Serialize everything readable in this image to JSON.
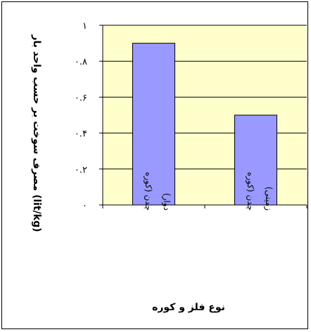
{
  "chart_data": {
    "type": "bar",
    "title": "",
    "xlabel": "نوع فلز و کوره",
    "ylabel": "مصرف سوخت بر حسب واحد بار (lit/kg)",
    "categories": [
      [
        "چدن (کوره",
        "دوار)"
      ],
      [
        "چدن (کوره",
        "زمینی)"
      ]
    ],
    "values": [
      0.9,
      0.5
    ],
    "ylim": [
      0,
      1
    ],
    "yticks": [
      0,
      0.2,
      0.4,
      0.6,
      0.8,
      1
    ],
    "ytick_labels": [
      "۰",
      "۰.۲",
      "۰.۴",
      "۰.۶",
      "۰.۸",
      "۱"
    ],
    "grid": true,
    "legend": "none",
    "colors": {
      "plot_background": "#ffffcc",
      "bar_fill": "#9999ff",
      "bar_stroke": "#000000",
      "gridline": "#000000"
    }
  }
}
